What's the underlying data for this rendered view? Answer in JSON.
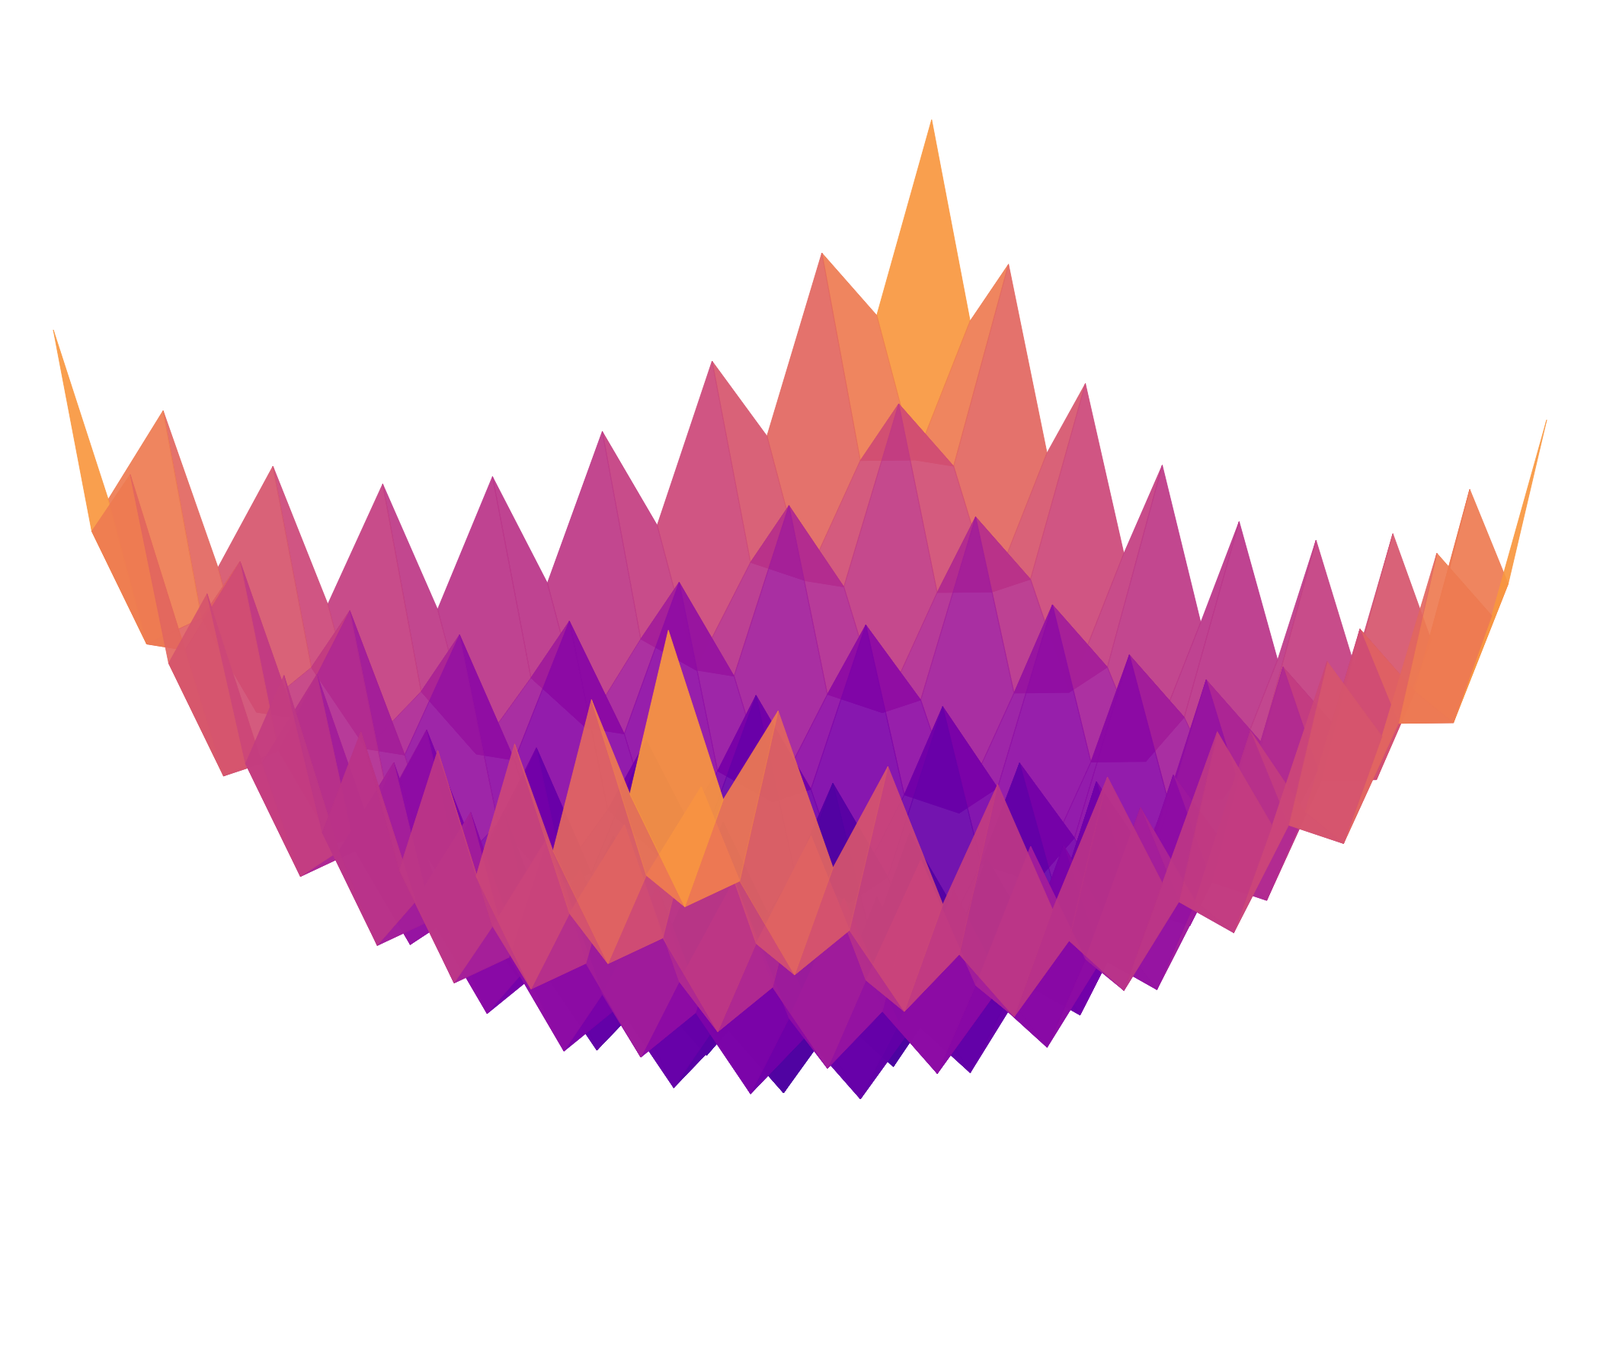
{
  "chart_data": {
    "type": "surface",
    "tick_labels": false,
    "x": [
      -4,
      -3.5,
      -3,
      -2.5,
      -2,
      -1.5,
      -1,
      -0.5,
      0,
      0.5,
      1,
      1.5,
      2,
      2.5,
      3,
      3.5,
      4
    ],
    "y": [
      -4,
      -3.5,
      -3,
      -2.5,
      -2,
      -1.5,
      -1,
      -0.5,
      0,
      0.5,
      1,
      1.5,
      2,
      2.5,
      3,
      3.5,
      4
    ],
    "z": [
      [
        11.0,
        8.1,
        9.3,
        6.6,
        8.0,
        5.6,
        7.3,
        5.1,
        7.0,
        5.1,
        7.3,
        5.6,
        8.0,
        6.6,
        9.3,
        8.1,
        11.0
      ],
      [
        8.1,
        6.1,
        6.3,
        4.6,
        5.1,
        3.6,
        4.3,
        3.1,
        4.1,
        3.1,
        4.3,
        3.6,
        5.1,
        4.6,
        6.3,
        6.1,
        8.1
      ],
      [
        9.3,
        6.3,
        7.5,
        4.8,
        6.3,
        3.8,
        5.5,
        3.3,
        5.3,
        3.3,
        5.5,
        3.8,
        6.3,
        4.8,
        7.5,
        6.3,
        9.3
      ],
      [
        6.6,
        4.6,
        4.8,
        3.1,
        3.6,
        2.1,
        2.8,
        1.6,
        2.6,
        1.6,
        2.8,
        2.1,
        3.6,
        3.1,
        4.8,
        4.6,
        6.6
      ],
      [
        8.0,
        5.1,
        6.3,
        3.6,
        5.0,
        2.6,
        4.3,
        2.1,
        4.0,
        2.1,
        4.3,
        2.6,
        5.0,
        3.6,
        6.3,
        5.1,
        8.0
      ],
      [
        5.6,
        3.6,
        3.8,
        2.1,
        2.6,
        1.1,
        1.8,
        0.6,
        1.6,
        0.6,
        1.8,
        1.1,
        2.6,
        2.1,
        3.8,
        3.6,
        5.6
      ],
      [
        7.3,
        4.3,
        5.5,
        2.8,
        4.3,
        1.8,
        3.5,
        1.3,
        3.3,
        1.3,
        3.5,
        1.8,
        4.3,
        2.8,
        5.5,
        4.3,
        7.3
      ],
      [
        5.1,
        3.1,
        3.3,
        1.6,
        2.1,
        0.6,
        1.3,
        0.1,
        1.1,
        0.1,
        1.3,
        0.6,
        2.1,
        1.6,
        3.3,
        3.1,
        5.1
      ],
      [
        7.0,
        4.1,
        5.3,
        2.6,
        4.0,
        1.6,
        3.3,
        1.1,
        3.0,
        1.1,
        3.3,
        1.6,
        4.0,
        2.6,
        5.3,
        4.1,
        7.0
      ],
      [
        5.1,
        3.1,
        3.3,
        1.6,
        2.1,
        0.6,
        1.3,
        0.1,
        1.1,
        0.1,
        1.3,
        0.6,
        2.1,
        1.6,
        3.3,
        3.1,
        5.1
      ],
      [
        7.3,
        4.3,
        5.5,
        2.8,
        4.3,
        1.8,
        3.5,
        1.3,
        3.3,
        1.3,
        3.5,
        1.8,
        4.3,
        2.8,
        5.5,
        4.3,
        7.3
      ],
      [
        5.6,
        3.6,
        3.8,
        2.1,
        2.6,
        1.1,
        1.8,
        0.6,
        1.6,
        0.6,
        1.8,
        1.1,
        2.6,
        2.1,
        3.8,
        3.6,
        5.6
      ],
      [
        8.0,
        5.1,
        6.3,
        3.6,
        5.0,
        2.6,
        4.3,
        2.1,
        4.0,
        2.1,
        4.3,
        2.6,
        5.0,
        3.6,
        6.3,
        5.1,
        8.0
      ],
      [
        6.6,
        4.6,
        4.8,
        3.1,
        3.6,
        2.1,
        2.8,
        1.6,
        2.6,
        1.6,
        2.8,
        2.1,
        3.6,
        3.1,
        4.8,
        4.6,
        6.6
      ],
      [
        9.3,
        6.3,
        7.5,
        4.8,
        6.3,
        3.8,
        5.5,
        3.3,
        5.3,
        3.3,
        5.5,
        3.8,
        6.3,
        4.8,
        7.5,
        6.3,
        9.3
      ],
      [
        8.1,
        6.1,
        6.3,
        4.6,
        5.1,
        3.6,
        4.3,
        3.1,
        4.1,
        3.1,
        4.3,
        3.6,
        5.1,
        4.6,
        6.3,
        6.1,
        8.1
      ],
      [
        11.0,
        8.1,
        9.3,
        6.6,
        8.0,
        5.6,
        7.3,
        5.1,
        7.0,
        5.1,
        7.3,
        5.6,
        8.0,
        6.6,
        9.3,
        8.1,
        11.0
      ]
    ]
  }
}
